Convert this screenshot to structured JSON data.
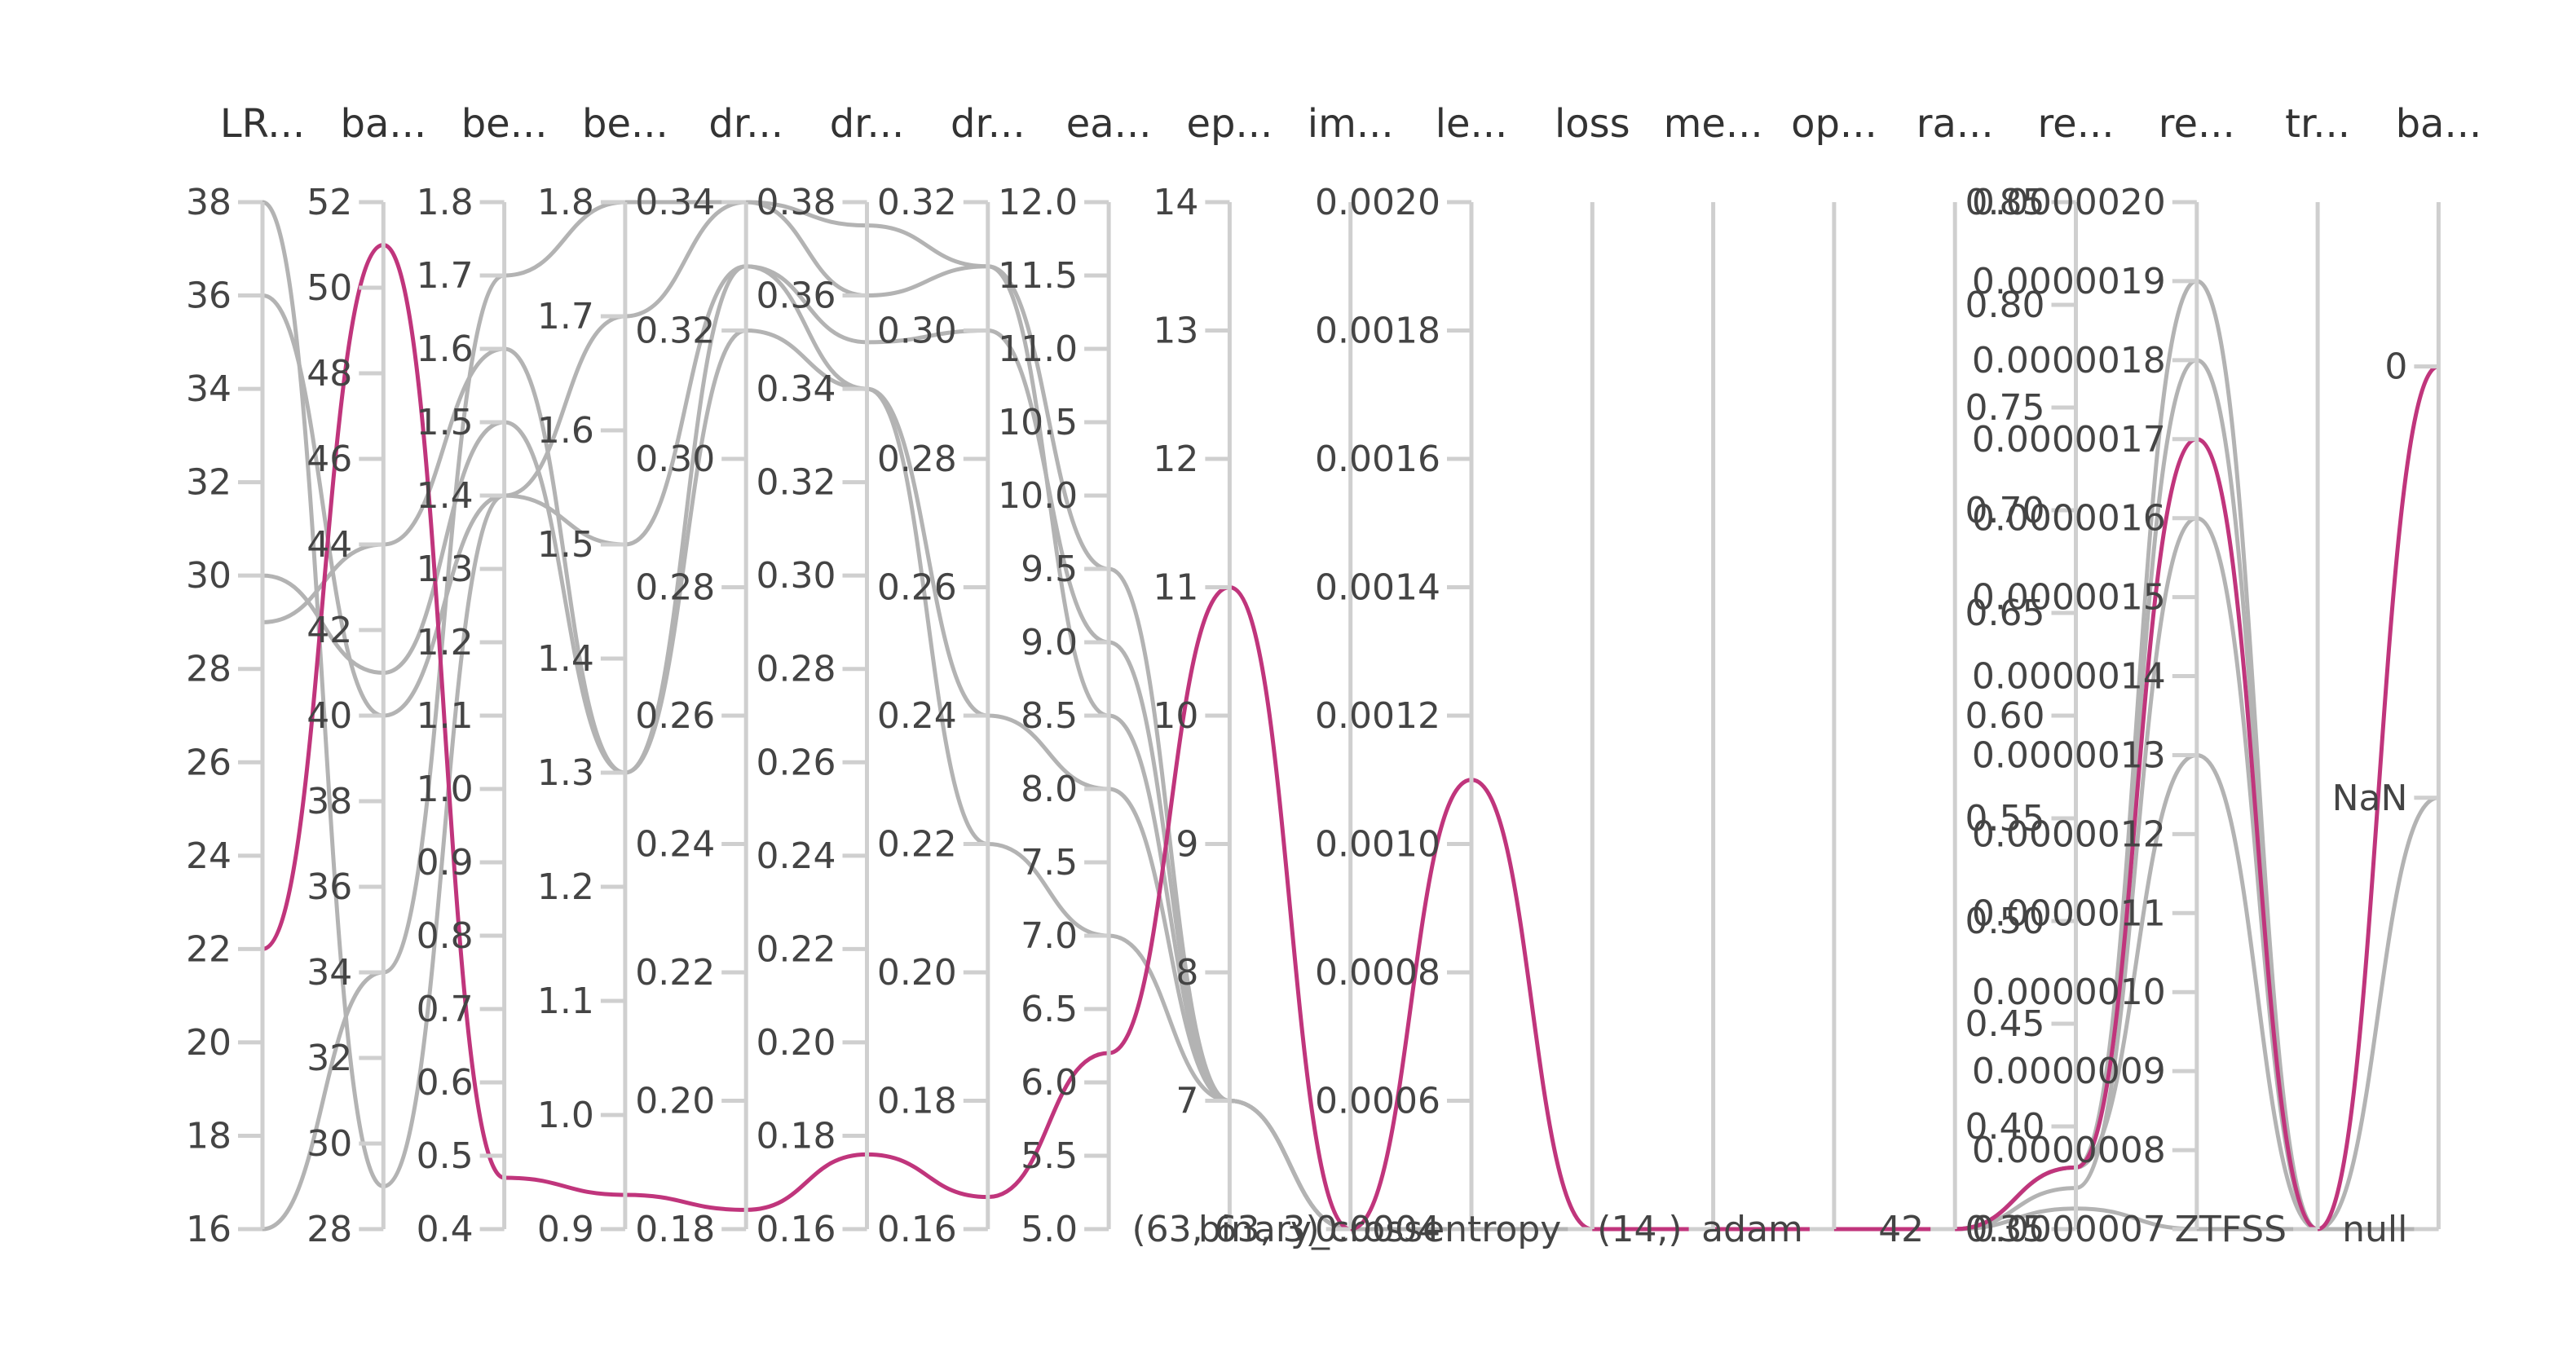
{
  "chart_data": {
    "type": "parallel-coordinates",
    "colors": {
      "axis": "#cfcfcf",
      "line": "#b3b3b3",
      "highlight": "#c0357c",
      "text": "#333333"
    },
    "axes": [
      {
        "key": "lr",
        "label": "LR...",
        "scale": "linear",
        "domain": [
          16,
          38
        ],
        "ticks": [
          {
            "v": 16,
            "t": "16"
          },
          {
            "v": 18,
            "t": "18"
          },
          {
            "v": 20,
            "t": "20"
          },
          {
            "v": 22,
            "t": "22"
          },
          {
            "v": 24,
            "t": "24"
          },
          {
            "v": 26,
            "t": "26"
          },
          {
            "v": 28,
            "t": "28"
          },
          {
            "v": 30,
            "t": "30"
          },
          {
            "v": 32,
            "t": "32"
          },
          {
            "v": 34,
            "t": "34"
          },
          {
            "v": 36,
            "t": "36"
          },
          {
            "v": 38,
            "t": "38"
          }
        ]
      },
      {
        "key": "ba1",
        "label": "ba...",
        "scale": "linear",
        "domain": [
          28,
          52
        ],
        "ticks": [
          {
            "v": 28,
            "t": "28"
          },
          {
            "v": 30,
            "t": "30"
          },
          {
            "v": 32,
            "t": "32"
          },
          {
            "v": 34,
            "t": "34"
          },
          {
            "v": 36,
            "t": "36"
          },
          {
            "v": 38,
            "t": "38"
          },
          {
            "v": 40,
            "t": "40"
          },
          {
            "v": 42,
            "t": "42"
          },
          {
            "v": 44,
            "t": "44"
          },
          {
            "v": 46,
            "t": "46"
          },
          {
            "v": 48,
            "t": "48"
          },
          {
            "v": 50,
            "t": "50"
          },
          {
            "v": 52,
            "t": "52"
          }
        ]
      },
      {
        "key": "be1",
        "label": "be...",
        "scale": "linear",
        "domain": [
          0.4,
          1.8
        ],
        "ticks": [
          {
            "v": 0.4,
            "t": "0.4"
          },
          {
            "v": 0.5,
            "t": "0.5"
          },
          {
            "v": 0.6,
            "t": "0.6"
          },
          {
            "v": 0.7,
            "t": "0.7"
          },
          {
            "v": 0.8,
            "t": "0.8"
          },
          {
            "v": 0.9,
            "t": "0.9"
          },
          {
            "v": 1.0,
            "t": "1.0"
          },
          {
            "v": 1.1,
            "t": "1.1"
          },
          {
            "v": 1.2,
            "t": "1.2"
          },
          {
            "v": 1.3,
            "t": "1.3"
          },
          {
            "v": 1.4,
            "t": "1.4"
          },
          {
            "v": 1.5,
            "t": "1.5"
          },
          {
            "v": 1.6,
            "t": "1.6"
          },
          {
            "v": 1.7,
            "t": "1.7"
          },
          {
            "v": 1.8,
            "t": "1.8"
          }
        ]
      },
      {
        "key": "be2",
        "label": "be...",
        "scale": "linear",
        "domain": [
          0.9,
          1.8
        ],
        "ticks": [
          {
            "v": 0.9,
            "t": "0.9"
          },
          {
            "v": 1.0,
            "t": "1.0"
          },
          {
            "v": 1.1,
            "t": "1.1"
          },
          {
            "v": 1.2,
            "t": "1.2"
          },
          {
            "v": 1.3,
            "t": "1.3"
          },
          {
            "v": 1.4,
            "t": "1.4"
          },
          {
            "v": 1.5,
            "t": "1.5"
          },
          {
            "v": 1.6,
            "t": "1.6"
          },
          {
            "v": 1.7,
            "t": "1.7"
          },
          {
            "v": 1.8,
            "t": "1.8"
          }
        ]
      },
      {
        "key": "dr1",
        "label": "dr...",
        "scale": "linear",
        "domain": [
          0.18,
          0.34
        ],
        "ticks": [
          {
            "v": 0.18,
            "t": "0.18"
          },
          {
            "v": 0.2,
            "t": "0.20"
          },
          {
            "v": 0.22,
            "t": "0.22"
          },
          {
            "v": 0.24,
            "t": "0.24"
          },
          {
            "v": 0.26,
            "t": "0.26"
          },
          {
            "v": 0.28,
            "t": "0.28"
          },
          {
            "v": 0.3,
            "t": "0.30"
          },
          {
            "v": 0.32,
            "t": "0.32"
          },
          {
            "v": 0.34,
            "t": "0.34"
          }
        ]
      },
      {
        "key": "dr2",
        "label": "dr...",
        "scale": "linear",
        "domain": [
          0.16,
          0.38
        ],
        "ticks": [
          {
            "v": 0.16,
            "t": "0.16"
          },
          {
            "v": 0.18,
            "t": "0.18"
          },
          {
            "v": 0.2,
            "t": "0.20"
          },
          {
            "v": 0.22,
            "t": "0.22"
          },
          {
            "v": 0.24,
            "t": "0.24"
          },
          {
            "v": 0.26,
            "t": "0.26"
          },
          {
            "v": 0.28,
            "t": "0.28"
          },
          {
            "v": 0.3,
            "t": "0.30"
          },
          {
            "v": 0.32,
            "t": "0.32"
          },
          {
            "v": 0.34,
            "t": "0.34"
          },
          {
            "v": 0.36,
            "t": "0.36"
          },
          {
            "v": 0.38,
            "t": "0.38"
          }
        ]
      },
      {
        "key": "dr3",
        "label": "dr...",
        "scale": "linear",
        "domain": [
          0.16,
          0.32
        ],
        "ticks": [
          {
            "v": 0.16,
            "t": "0.16"
          },
          {
            "v": 0.18,
            "t": "0.18"
          },
          {
            "v": 0.2,
            "t": "0.20"
          },
          {
            "v": 0.22,
            "t": "0.22"
          },
          {
            "v": 0.24,
            "t": "0.24"
          },
          {
            "v": 0.26,
            "t": "0.26"
          },
          {
            "v": 0.28,
            "t": "0.28"
          },
          {
            "v": 0.3,
            "t": "0.30"
          },
          {
            "v": 0.32,
            "t": "0.32"
          }
        ]
      },
      {
        "key": "ea",
        "label": "ea...",
        "scale": "linear",
        "domain": [
          5.0,
          12.0
        ],
        "ticks": [
          {
            "v": 5.0,
            "t": "5.0"
          },
          {
            "v": 5.5,
            "t": "5.5"
          },
          {
            "v": 6.0,
            "t": "6.0"
          },
          {
            "v": 6.5,
            "t": "6.5"
          },
          {
            "v": 7.0,
            "t": "7.0"
          },
          {
            "v": 7.5,
            "t": "7.5"
          },
          {
            "v": 8.0,
            "t": "8.0"
          },
          {
            "v": 8.5,
            "t": "8.5"
          },
          {
            "v": 9.0,
            "t": "9.0"
          },
          {
            "v": 9.5,
            "t": "9.5"
          },
          {
            "v": 10.0,
            "t": "10.0"
          },
          {
            "v": 10.5,
            "t": "10.5"
          },
          {
            "v": 11.0,
            "t": "11.0"
          },
          {
            "v": 11.5,
            "t": "11.5"
          },
          {
            "v": 12.0,
            "t": "12.0"
          }
        ]
      },
      {
        "key": "ep",
        "label": "ep...",
        "scale": "linear",
        "domain": [
          6,
          14
        ],
        "ticks": [
          {
            "v": 7,
            "t": "7"
          },
          {
            "v": 8,
            "t": "8"
          },
          {
            "v": 9,
            "t": "9"
          },
          {
            "v": 10,
            "t": "10"
          },
          {
            "v": 11,
            "t": "11"
          },
          {
            "v": 12,
            "t": "12"
          },
          {
            "v": 13,
            "t": "13"
          },
          {
            "v": 14,
            "t": "14"
          }
        ]
      },
      {
        "key": "im",
        "label": "im...",
        "scale": "categorical",
        "domain": [
          "(63, 63, 3)"
        ],
        "ticks": [
          {
            "v": "(63, 63, 3)",
            "t": "(63, 63, 3)"
          }
        ]
      },
      {
        "key": "le",
        "label": "le...",
        "scale": "linear",
        "domain": [
          0.0004,
          0.002
        ],
        "ticks": [
          {
            "v": 0.0004,
            "t": "0.0004"
          },
          {
            "v": 0.0006,
            "t": "0.0006"
          },
          {
            "v": 0.0008,
            "t": "0.0008"
          },
          {
            "v": 0.001,
            "t": "0.0010"
          },
          {
            "v": 0.0012,
            "t": "0.0012"
          },
          {
            "v": 0.0014,
            "t": "0.0014"
          },
          {
            "v": 0.0016,
            "t": "0.0016"
          },
          {
            "v": 0.0018,
            "t": "0.0018"
          },
          {
            "v": 0.002,
            "t": "0.0020"
          }
        ]
      },
      {
        "key": "loss",
        "label": "loss",
        "scale": "categorical",
        "domain": [
          "binary_crossentropy"
        ],
        "ticks": [
          {
            "v": "binary_crossentropy",
            "t": "binary_crossentropy"
          }
        ]
      },
      {
        "key": "me",
        "label": "me...",
        "scale": "categorical",
        "domain": [
          "(14,)"
        ],
        "ticks": [
          {
            "v": "(14,)",
            "t": "(14,)"
          }
        ]
      },
      {
        "key": "op",
        "label": "op...",
        "scale": "categorical",
        "domain": [
          "adam"
        ],
        "ticks": [
          {
            "v": "adam",
            "t": "adam"
          }
        ]
      },
      {
        "key": "ra",
        "label": "ra...",
        "scale": "categorical",
        "domain": [
          "42"
        ],
        "ticks": [
          {
            "v": "42",
            "t": "42"
          }
        ]
      },
      {
        "key": "re1",
        "label": "re...",
        "scale": "linear",
        "domain": [
          0.35,
          0.85
        ],
        "ticks": [
          {
            "v": 0.35,
            "t": "0.35"
          },
          {
            "v": 0.4,
            "t": "0.40"
          },
          {
            "v": 0.45,
            "t": "0.45"
          },
          {
            "v": 0.5,
            "t": "0.50"
          },
          {
            "v": 0.55,
            "t": "0.55"
          },
          {
            "v": 0.6,
            "t": "0.60"
          },
          {
            "v": 0.65,
            "t": "0.65"
          },
          {
            "v": 0.7,
            "t": "0.70"
          },
          {
            "v": 0.75,
            "t": "0.75"
          },
          {
            "v": 0.8,
            "t": "0.80"
          },
          {
            "v": 0.85,
            "t": "0.85"
          }
        ]
      },
      {
        "key": "re2",
        "label": "re...",
        "scale": "linear",
        "domain": [
          7e-07,
          2e-06
        ],
        "ticks": [
          {
            "v": 7e-07,
            "t": "0.0000007"
          },
          {
            "v": 8e-07,
            "t": "0.0000008"
          },
          {
            "v": 9e-07,
            "t": "0.0000009"
          },
          {
            "v": 1e-06,
            "t": "0.0000010"
          },
          {
            "v": 1.1e-06,
            "t": "0.0000011"
          },
          {
            "v": 1.2e-06,
            "t": "0.0000012"
          },
          {
            "v": 1.3e-06,
            "t": "0.0000013"
          },
          {
            "v": 1.4e-06,
            "t": "0.0000014"
          },
          {
            "v": 1.5e-06,
            "t": "0.0000015"
          },
          {
            "v": 1.6e-06,
            "t": "0.0000016"
          },
          {
            "v": 1.7e-06,
            "t": "0.0000017"
          },
          {
            "v": 1.8e-06,
            "t": "0.0000018"
          },
          {
            "v": 1.9e-06,
            "t": "0.0000019"
          },
          {
            "v": 2e-06,
            "t": "0.0000020"
          }
        ]
      },
      {
        "key": "tr",
        "label": "tr...",
        "scale": "categorical",
        "domain": [
          "ZTFSS"
        ],
        "ticks": [
          {
            "v": "ZTFSS",
            "t": "ZTFSS"
          }
        ]
      },
      {
        "key": "ba2",
        "label": "ba...",
        "scale": "categorical",
        "domain": [
          "null",
          "NaN",
          "0"
        ],
        "ticks": [
          {
            "v": "null",
            "t": "null"
          },
          {
            "v": "NaN",
            "t": "NaN"
          },
          {
            "v": "0",
            "t": "0"
          }
        ]
      }
    ],
    "series": [
      {
        "highlight": false,
        "values": [
          16,
          34,
          1.7,
          1.8,
          0.34,
          0.375,
          0.31,
          8.5,
          7,
          "(63, 63, 3)",
          0.0004,
          "binary_crossentropy",
          "(14,)",
          "adam",
          "42",
          0.36,
          7e-07,
          "ZTFSS",
          "NaN"
        ]
      },
      {
        "highlight": false,
        "values": [
          38,
          29,
          1.4,
          1.7,
          0.34,
          0.36,
          0.31,
          9.5,
          7,
          "(63, 63, 3)",
          0.0004,
          "binary_crossentropy",
          "(14,)",
          "adam",
          "42",
          0.38,
          1.8e-06,
          "ZTFSS",
          "null"
        ]
      },
      {
        "highlight": false,
        "values": [
          36,
          40,
          1.4,
          1.5,
          0.33,
          0.35,
          0.3,
          9,
          7,
          "(63, 63, 3)",
          0.0004,
          "binary_crossentropy",
          "(14,)",
          "adam",
          "42",
          0.38,
          1.9e-06,
          "ZTFSS",
          "null"
        ]
      },
      {
        "highlight": false,
        "values": [
          29,
          44,
          1.6,
          1.3,
          0.33,
          0.34,
          0.24,
          8,
          7,
          "(63, 63, 3)",
          0.0004,
          "binary_crossentropy",
          "(14,)",
          "adam",
          "42",
          0.38,
          1.3e-06,
          "ZTFSS",
          "null"
        ]
      },
      {
        "highlight": false,
        "values": [
          30,
          41,
          1.5,
          1.3,
          0.32,
          0.34,
          0.22,
          7,
          7,
          "(63, 63, 3)",
          0.0004,
          "binary_crossentropy",
          "(14,)",
          "adam",
          "42",
          0.37,
          1.6e-06,
          "ZTFSS",
          "null"
        ]
      },
      {
        "highlight": true,
        "values": [
          22,
          51,
          0.47,
          0.93,
          0.183,
          0.176,
          0.165,
          6.2,
          11,
          "(63, 63, 3)",
          0.0011,
          "binary_crossentropy",
          "(14,)",
          "adam",
          "42",
          0.38,
          1.7e-06,
          "ZTFSS",
          "0"
        ]
      }
    ]
  }
}
